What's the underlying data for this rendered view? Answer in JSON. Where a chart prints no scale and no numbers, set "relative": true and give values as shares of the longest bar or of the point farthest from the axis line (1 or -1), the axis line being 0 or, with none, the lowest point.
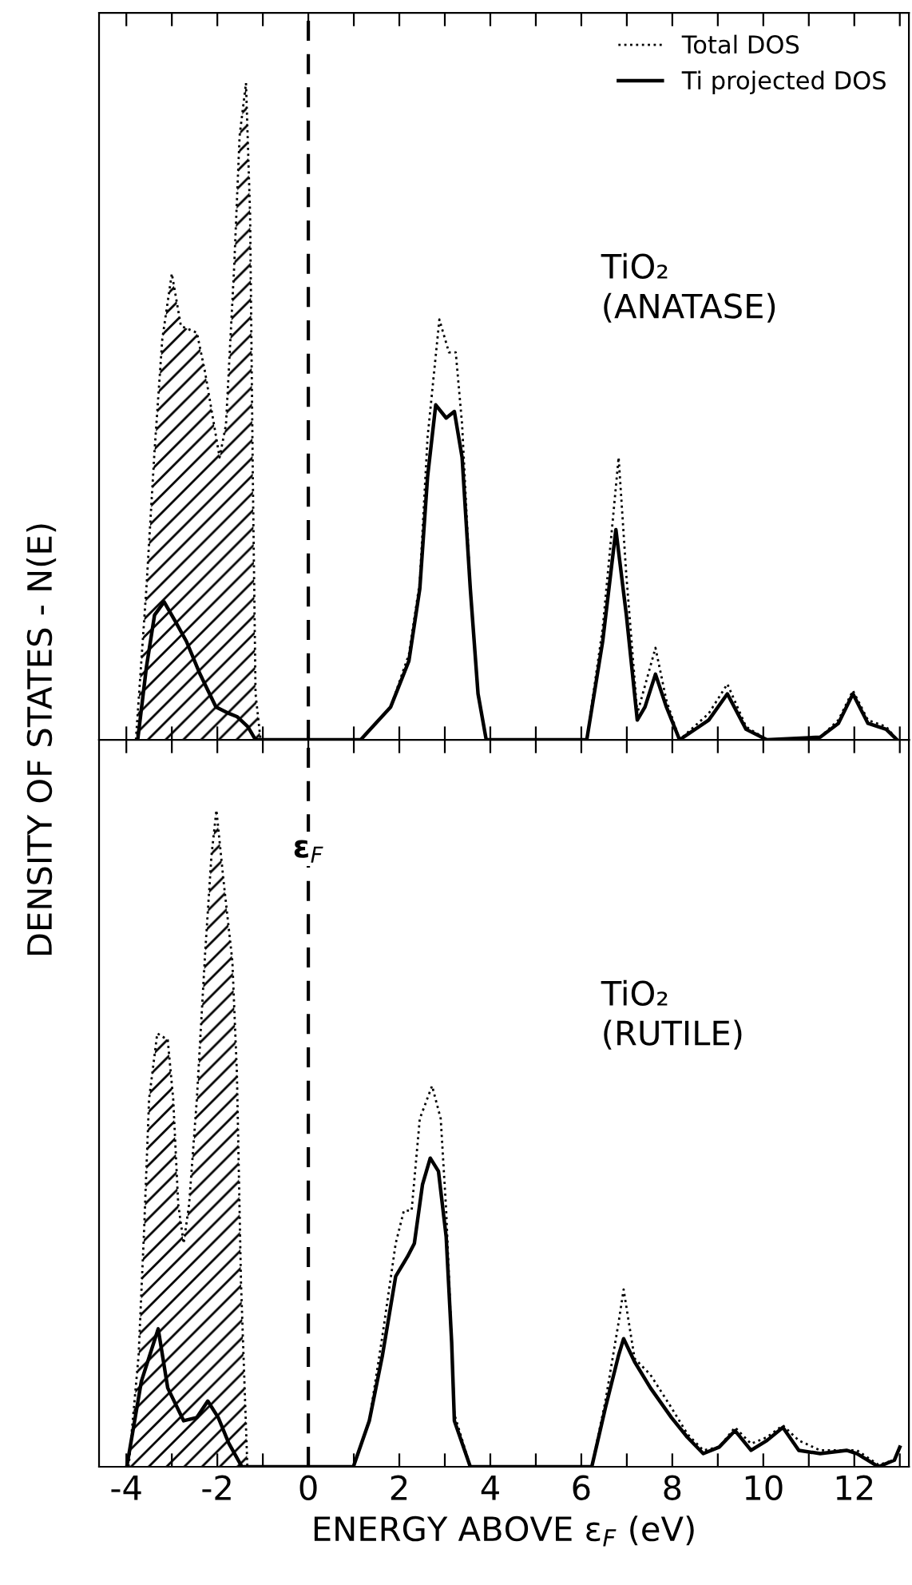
{
  "chart_data": [
    {
      "type": "line",
      "relative": true,
      "ylabel": "DENSITY OF STATES - N(E)",
      "xlim": [
        -4.6,
        13.2
      ],
      "xticks": [
        {
          "value": -4,
          "label": null
        },
        {
          "value": -3,
          "label": null
        },
        {
          "value": -2,
          "label": null
        },
        {
          "value": -1,
          "label": null
        },
        {
          "value": 0,
          "label": null
        },
        {
          "value": 1,
          "label": null
        },
        {
          "value": 2,
          "label": null
        },
        {
          "value": 3,
          "label": null
        },
        {
          "value": 4,
          "label": null
        },
        {
          "value": 5,
          "label": null
        },
        {
          "value": 6,
          "label": null
        },
        {
          "value": 7,
          "label": null
        },
        {
          "value": 8,
          "label": null
        },
        {
          "value": 9,
          "label": null
        },
        {
          "value": 10,
          "label": null
        },
        {
          "value": 11,
          "label": null
        },
        {
          "value": 12,
          "label": null
        },
        {
          "value": 13,
          "label": null
        }
      ],
      "tick_labels": false,
      "legend": "top right",
      "grid": false,
      "ref_lines": [
        {
          "axis": "x",
          "value": 0,
          "label": null,
          "color": "#000000",
          "line_style": "dashed"
        }
      ],
      "annotations": [
        "TiO₂\n(ANATASE)"
      ],
      "series": [
        {
          "type": "area",
          "color": "#000000",
          "line_style": "dotted",
          "x": [
            -3.79,
            -3.56,
            -3.38,
            -3.21,
            -3.0,
            -2.8,
            -2.45,
            -2.27,
            -1.95,
            -1.81,
            -1.63,
            -1.51,
            -1.37,
            -1.28,
            -1.22,
            -1.16,
            -1.05
          ],
          "values": [
            0,
            0.23,
            0.44,
            0.61,
            0.71,
            0.63,
            0.62,
            0.56,
            0.43,
            0.48,
            0.72,
            0.92,
            1.0,
            0.8,
            0.4,
            0.07,
            0
          ]
        },
        {
          "name": "Total DOS",
          "color": "#000000",
          "line_style": "dotted",
          "x": [
            1.15,
            1.81,
            2.21,
            2.45,
            2.62,
            2.88,
            3.09,
            3.24,
            3.38,
            3.56,
            3.73,
            3.91,
            6.12,
            6.47,
            6.82,
            6.99,
            7.23,
            7.63,
            7.87,
            8.16,
            8.8,
            9.21,
            9.62,
            10.08,
            11.25,
            11.65,
            11.97,
            12.3,
            12.7,
            12.94
          ],
          "values": [
            0,
            0.05,
            0.13,
            0.24,
            0.46,
            0.64,
            0.59,
            0.59,
            0.48,
            0.23,
            0.07,
            0,
            0,
            0.17,
            0.43,
            0.25,
            0.04,
            0.14,
            0.06,
            0,
            0.04,
            0.085,
            0.02,
            0,
            0.004,
            0.03,
            0.075,
            0.03,
            0.02,
            0
          ]
        },
        {
          "name": "Ti projected DOS",
          "color": "#000000",
          "line_style": "solid",
          "x": [
            -3.75,
            -3.56,
            -3.38,
            -3.17,
            -2.92,
            -2.68,
            -2.38,
            -2.03,
            -1.74,
            -1.56,
            -1.33,
            -1.16,
            1.15,
            1.81,
            2.21,
            2.45,
            2.62,
            2.8,
            3.03,
            3.21,
            3.38,
            3.56,
            3.73,
            3.91,
            6.12,
            6.47,
            6.76,
            6.99,
            7.23,
            7.4,
            7.63,
            7.87,
            8.16,
            8.8,
            9.21,
            9.62,
            10.08,
            11.25,
            11.65,
            11.97,
            12.3,
            12.7,
            12.94
          ],
          "values": [
            0,
            0.11,
            0.19,
            0.21,
            0.18,
            0.15,
            0.1,
            0.05,
            0.04,
            0.035,
            0.02,
            0,
            0,
            0.05,
            0.12,
            0.23,
            0.4,
            0.51,
            0.49,
            0.5,
            0.43,
            0.23,
            0.07,
            0,
            0,
            0.15,
            0.32,
            0.19,
            0.03,
            0.05,
            0.1,
            0.05,
            0,
            0.03,
            0.07,
            0.016,
            0,
            0.004,
            0.025,
            0.07,
            0.025,
            0.016,
            0
          ]
        }
      ]
    },
    {
      "type": "line",
      "relative": true,
      "xlabel": "ENERGY ABOVE ε$_{F}$ (eV)",
      "xlim": [
        -4.6,
        13.2
      ],
      "xticks": [
        -4,
        {
          "value": -3,
          "label": null
        },
        {
          "value": -2,
          "label": "-2"
        },
        {
          "value": -1,
          "label": null
        },
        0,
        {
          "value": 1,
          "label": null
        },
        2,
        {
          "value": 3,
          "label": null
        },
        4,
        {
          "value": 5,
          "label": null
        },
        6,
        {
          "value": 7,
          "label": null
        },
        8,
        {
          "value": 9,
          "label": null
        },
        10,
        {
          "value": 11,
          "label": null
        },
        12,
        {
          "value": 13,
          "label": null
        }
      ],
      "tick_labels": "x",
      "grid": false,
      "ref_lines": [
        {
          "axis": "x",
          "value": 0,
          "label": "ε$_{F}$",
          "color": "#000000",
          "line_style": "dashed"
        }
      ],
      "annotations": [
        "TiO₂\n(RUTILE)"
      ],
      "series": [
        {
          "type": "area",
          "color": "#000000",
          "line_style": "dotted",
          "x": [
            -3.95,
            -3.73,
            -3.61,
            -3.5,
            -3.32,
            -3.09,
            -2.97,
            -2.86,
            -2.74,
            -2.62,
            -2.45,
            -2.27,
            -2.13,
            -2.02,
            -1.86,
            -1.67,
            -1.57,
            -1.48,
            -1.34
          ],
          "values": [
            0,
            0.17,
            0.36,
            0.56,
            0.66,
            0.65,
            0.56,
            0.4,
            0.34,
            0.4,
            0.56,
            0.78,
            0.93,
            1.0,
            0.89,
            0.77,
            0.6,
            0.28,
            0
          ]
        },
        {
          "color": "#000000",
          "line_style": "dotted",
          "x": [
            0.99,
            1.34,
            1.63,
            1.92,
            2.1,
            2.27,
            2.45,
            2.72,
            2.91,
            3.03,
            3.15,
            3.21,
            3.56,
            6.23,
            6.53,
            6.82,
            6.93,
            7.17,
            7.52,
            7.98,
            8.33,
            8.68,
            9.03,
            9.38,
            9.73,
            10.08,
            10.43,
            10.78,
            11.25,
            11.83,
            12.06,
            12.53,
            12.88,
            13.0
          ],
          "values": [
            0,
            0.07,
            0.2,
            0.34,
            0.39,
            0.39,
            0.53,
            0.58,
            0.53,
            0.39,
            0.19,
            0.08,
            0,
            0,
            0.1,
            0.22,
            0.27,
            0.165,
            0.14,
            0.09,
            0.05,
            0.025,
            0.03,
            0.06,
            0.035,
            0.045,
            0.063,
            0.04,
            0.025,
            0.025,
            0.025,
            0.003,
            0.01,
            0.03
          ]
        },
        {
          "color": "#000000",
          "line_style": "solid",
          "x": [
            -3.99,
            -3.67,
            -3.3,
            -3.09,
            -2.74,
            -2.45,
            -2.21,
            -1.98,
            -1.75,
            -1.46,
            0.99,
            1.34,
            1.63,
            1.92,
            2.18,
            2.33,
            2.51,
            2.68,
            2.86,
            3.03,
            3.15,
            3.21,
            3.56,
            6.23,
            6.53,
            6.82,
            6.93,
            7.17,
            7.52,
            7.98,
            8.33,
            8.68,
            9.03,
            9.38,
            9.73,
            10.08,
            10.43,
            10.78,
            11.25,
            11.83,
            12.06,
            12.53,
            12.88,
            13.0
          ],
          "values": [
            0,
            0.13,
            0.21,
            0.12,
            0.07,
            0.075,
            0.1,
            0.075,
            0.036,
            0,
            0,
            0.07,
            0.17,
            0.29,
            0.32,
            0.34,
            0.43,
            0.47,
            0.45,
            0.35,
            0.19,
            0.07,
            0,
            0,
            0.09,
            0.17,
            0.195,
            0.16,
            0.12,
            0.075,
            0.045,
            0.02,
            0.03,
            0.055,
            0.025,
            0.04,
            0.06,
            0.025,
            0.02,
            0.025,
            0.02,
            0,
            0.01,
            0.03
          ]
        }
      ]
    }
  ]
}
